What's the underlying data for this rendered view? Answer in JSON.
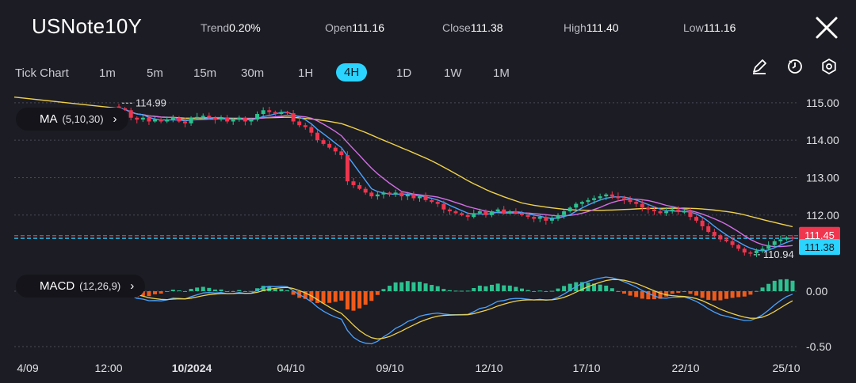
{
  "header": {
    "symbol": "USNote10Y",
    "trend_label": "Trend",
    "trend_value": "0.20%",
    "open_label": "Open",
    "open_value": "111.16",
    "close_label": "Close",
    "close_value": "111.38",
    "high_label": "High",
    "high_value": "111.40",
    "low_label": "Low",
    "low_value": "111.16",
    "close_icon": "close-icon"
  },
  "timeframes": [
    "Tick Chart",
    "1m",
    "5m",
    "15m",
    "30m",
    "1H",
    "4H",
    "1D",
    "1W",
    "1M"
  ],
  "active_timeframe": "4H",
  "tools": [
    "pencil-icon",
    "timer-icon",
    "settings-icon"
  ],
  "indicators": {
    "ma_label": "MA",
    "ma_params": "(5,10,30)",
    "macd_label": "MACD",
    "macd_params": "(12,26,9)"
  },
  "colors": {
    "up": "#2cc18f",
    "down": "#f0364f",
    "ma5": "#4aa3ff",
    "ma10": "#d36fe6",
    "ma30": "#f0d24a",
    "macd_up": "#2cc18f",
    "macd_down": "#f05a1a",
    "accent": "#2ad4ff"
  },
  "chart_data": [
    {
      "type": "candlestick",
      "y_ticks": [
        "115.00",
        "114.00",
        "113.00",
        "112.00"
      ],
      "ylim": [
        110.6,
        115.25
      ],
      "x_ticks": [
        "4/09",
        "12:00",
        "10/2024",
        "04/10",
        "09/10",
        "12/10",
        "17/10",
        "22/10",
        "25/10"
      ],
      "high_marker": "114.99",
      "low_marker": "110.94",
      "price_labels": [
        "111.45",
        "111.38"
      ],
      "close_path": [
        114.85,
        114.8,
        114.6,
        114.55,
        114.6,
        114.5,
        114.55,
        114.5,
        114.55,
        114.6,
        114.5,
        114.45,
        114.6,
        114.62,
        114.65,
        114.6,
        114.55,
        114.6,
        114.5,
        114.55,
        114.6,
        114.5,
        114.55,
        114.7,
        114.8,
        114.75,
        114.7,
        114.75,
        114.72,
        114.5,
        114.4,
        114.35,
        114.2,
        114.0,
        113.9,
        113.8,
        113.7,
        113.6,
        112.9,
        112.8,
        112.7,
        112.6,
        112.5,
        112.55,
        112.6,
        112.55,
        112.6,
        112.5,
        112.55,
        112.45,
        112.5,
        112.4,
        112.35,
        112.3,
        112.15,
        112.1,
        112.05,
        112.0,
        111.95,
        112.05,
        112.1,
        112.0,
        112.1,
        112.15,
        112.05,
        112.1,
        112.05,
        112.0,
        111.95,
        111.9,
        111.95,
        111.85,
        111.9,
        112.0,
        112.1,
        112.2,
        112.3,
        112.35,
        112.4,
        112.45,
        112.5,
        112.55,
        112.5,
        112.45,
        112.4,
        112.35,
        112.3,
        112.2,
        112.15,
        112.1,
        112.05,
        112.1,
        112.15,
        112.1,
        112.1,
        111.95,
        111.85,
        111.7,
        111.55,
        111.45,
        111.35,
        111.3,
        111.2,
        111.1,
        111.0,
        110.98,
        111.05,
        111.1,
        111.2,
        111.3,
        111.35,
        111.4,
        111.38
      ],
      "macd_y_ticks": [
        "0.00",
        "-0.50"
      ],
      "macd_ylim": [
        -0.6,
        0.2
      ]
    }
  ]
}
